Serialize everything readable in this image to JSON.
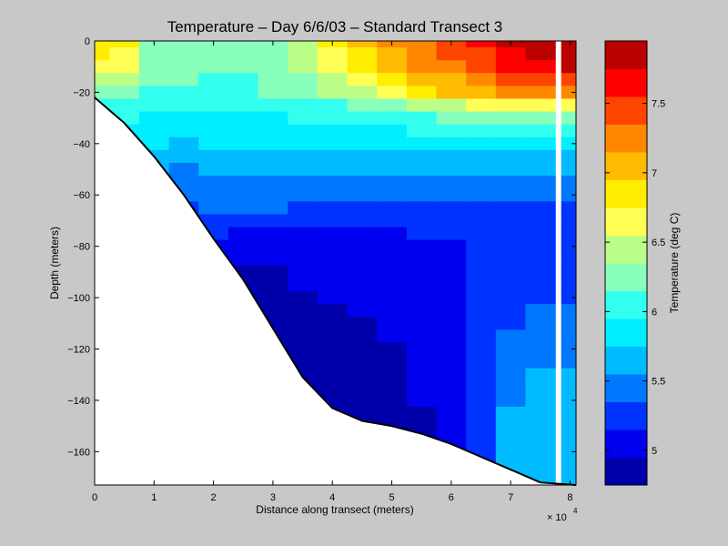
{
  "chart_data": {
    "type": "heatmap",
    "title": "Temperature – Day 6/6/03 – Standard Transect 3",
    "xlabel": "Distance along transect (meters)",
    "ylabel": "Depth (meters)",
    "x_exponent_label": "× 10",
    "x_exponent_power": "4",
    "xlim": [
      0,
      81000
    ],
    "ylim": [
      -173,
      0
    ],
    "x_tick_values": [
      0,
      10000,
      20000,
      30000,
      40000,
      50000,
      60000,
      70000,
      80000
    ],
    "x_tick_labels": [
      "0",
      "1",
      "2",
      "3",
      "4",
      "5",
      "6",
      "7",
      "8"
    ],
    "y_ticks": [
      0,
      -20,
      -40,
      -60,
      -80,
      -100,
      -120,
      -140,
      -160
    ],
    "y_tick_labels": [
      "0",
      "−20",
      "−40",
      "−60",
      "−80",
      "−100",
      "−120",
      "−140",
      "−160"
    ],
    "colorbar": {
      "label": "Temperature (deg C)",
      "range": [
        4.75,
        7.95
      ],
      "ticks": [
        5,
        5.5,
        6,
        6.5,
        7,
        7.5
      ],
      "tick_labels": [
        "5",
        "5.5",
        "6",
        "6.5",
        "7",
        "7.5"
      ],
      "levels": [
        {
          "value": 4.85,
          "color": "#0000aa"
        },
        {
          "value": 5.05,
          "color": "#0000ee"
        },
        {
          "value": 5.25,
          "color": "#0033ff"
        },
        {
          "value": 5.45,
          "color": "#0077ff"
        },
        {
          "value": 5.65,
          "color": "#00bbff"
        },
        {
          "value": 5.85,
          "color": "#00eeff"
        },
        {
          "value": 6.05,
          "color": "#33ffee"
        },
        {
          "value": 6.25,
          "color": "#88ffbb"
        },
        {
          "value": 6.45,
          "color": "#bbff88"
        },
        {
          "value": 6.65,
          "color": "#ffff55"
        },
        {
          "value": 6.85,
          "color": "#ffee00"
        },
        {
          "value": 7.05,
          "color": "#ffbb00"
        },
        {
          "value": 7.25,
          "color": "#ff8800"
        },
        {
          "value": 7.45,
          "color": "#ff4400"
        },
        {
          "value": 7.65,
          "color": "#ff0000"
        },
        {
          "value": 7.85,
          "color": "#bb0000"
        }
      ]
    },
    "bathymetry": [
      [
        0,
        -22
      ],
      [
        5000,
        -32
      ],
      [
        10000,
        -45
      ],
      [
        15000,
        -60
      ],
      [
        20000,
        -77
      ],
      [
        25000,
        -93
      ],
      [
        30000,
        -112
      ],
      [
        35000,
        -131
      ],
      [
        40000,
        -143
      ],
      [
        45000,
        -148
      ],
      [
        50000,
        -150
      ],
      [
        55000,
        -153
      ],
      [
        60000,
        -157
      ],
      [
        65000,
        -162
      ],
      [
        70000,
        -167
      ],
      [
        75000,
        -172
      ],
      [
        81000,
        -173
      ]
    ],
    "temperature_field": {
      "x": [
        0,
        5000,
        10000,
        15000,
        20000,
        25000,
        30000,
        35000,
        40000,
        45000,
        50000,
        55000,
        60000,
        65000,
        70000,
        75000,
        81000
      ],
      "depth": [
        0,
        5,
        10,
        15,
        20,
        25,
        30,
        35,
        40,
        45,
        50,
        55,
        60,
        65,
        70,
        75,
        80,
        85,
        90,
        95,
        100,
        105,
        110,
        115,
        120,
        125,
        130,
        135,
        140,
        145,
        150,
        155,
        160,
        165,
        170,
        175
      ],
      "profiles": [
        [
          [
            0,
            6.85
          ],
          [
            10,
            6.7
          ],
          [
            18,
            6.45
          ],
          [
            22,
            6.2
          ],
          [
            30,
            6.0
          ],
          [
            40,
            5.85
          ],
          [
            50,
            5.7
          ],
          [
            60,
            5.55
          ],
          [
            80,
            5.35
          ],
          [
            100,
            5.15
          ],
          [
            130,
            5.05
          ],
          [
            175,
            5.0
          ]
        ],
        [
          [
            0,
            6.75
          ],
          [
            10,
            6.6
          ],
          [
            18,
            6.4
          ],
          [
            22,
            6.2
          ],
          [
            28,
            6.0
          ],
          [
            38,
            5.85
          ],
          [
            50,
            5.7
          ],
          [
            60,
            5.55
          ],
          [
            80,
            5.35
          ],
          [
            100,
            5.15
          ],
          [
            130,
            5.05
          ],
          [
            175,
            5.0
          ]
        ],
        [
          [
            0,
            6.35
          ],
          [
            12,
            6.3
          ],
          [
            18,
            6.2
          ],
          [
            22,
            6.05
          ],
          [
            30,
            5.9
          ],
          [
            42,
            5.75
          ],
          [
            50,
            5.6
          ],
          [
            60,
            5.45
          ],
          [
            70,
            5.3
          ],
          [
            90,
            5.15
          ],
          [
            130,
            5.05
          ],
          [
            175,
            5.0
          ]
        ],
        [
          [
            0,
            6.25
          ],
          [
            12,
            6.2
          ],
          [
            18,
            6.1
          ],
          [
            22,
            6.0
          ],
          [
            32,
            5.85
          ],
          [
            42,
            5.7
          ],
          [
            52,
            5.5
          ],
          [
            62,
            5.35
          ],
          [
            72,
            5.2
          ],
          [
            90,
            5.1
          ],
          [
            130,
            5.0
          ],
          [
            175,
            4.98
          ]
        ],
        [
          [
            0,
            6.2
          ],
          [
            12,
            6.15
          ],
          [
            18,
            6.05
          ],
          [
            25,
            5.95
          ],
          [
            35,
            5.85
          ],
          [
            45,
            5.65
          ],
          [
            55,
            5.5
          ],
          [
            66,
            5.35
          ],
          [
            75,
            5.15
          ],
          [
            85,
            5.05
          ],
          [
            130,
            5.0
          ],
          [
            175,
            4.98
          ]
        ],
        [
          [
            0,
            6.2
          ],
          [
            12,
            6.15
          ],
          [
            18,
            6.1
          ],
          [
            26,
            5.95
          ],
          [
            35,
            5.85
          ],
          [
            45,
            5.65
          ],
          [
            55,
            5.5
          ],
          [
            66,
            5.35
          ],
          [
            72,
            5.2
          ],
          [
            80,
            5.05
          ],
          [
            90,
            4.9
          ],
          [
            130,
            4.85
          ],
          [
            175,
            4.85
          ]
        ],
        [
          [
            0,
            6.3
          ],
          [
            12,
            6.25
          ],
          [
            20,
            6.15
          ],
          [
            26,
            6.0
          ],
          [
            36,
            5.85
          ],
          [
            45,
            5.65
          ],
          [
            55,
            5.5
          ],
          [
            66,
            5.35
          ],
          [
            70,
            5.2
          ],
          [
            78,
            5.05
          ],
          [
            90,
            4.9
          ],
          [
            130,
            4.85
          ],
          [
            175,
            4.85
          ]
        ],
        [
          [
            0,
            6.5
          ],
          [
            12,
            6.4
          ],
          [
            20,
            6.25
          ],
          [
            26,
            6.05
          ],
          [
            38,
            5.85
          ],
          [
            46,
            5.65
          ],
          [
            55,
            5.5
          ],
          [
            62,
            5.35
          ],
          [
            68,
            5.2
          ],
          [
            78,
            5.05
          ],
          [
            95,
            4.95
          ],
          [
            110,
            4.85
          ],
          [
            175,
            4.85
          ]
        ],
        [
          [
            0,
            6.75
          ],
          [
            12,
            6.6
          ],
          [
            20,
            6.4
          ],
          [
            26,
            6.1
          ],
          [
            38,
            5.85
          ],
          [
            46,
            5.65
          ],
          [
            54,
            5.5
          ],
          [
            62,
            5.35
          ],
          [
            68,
            5.2
          ],
          [
            80,
            5.05
          ],
          [
            100,
            4.95
          ],
          [
            110,
            4.85
          ],
          [
            175,
            4.85
          ]
        ],
        [
          [
            0,
            6.95
          ],
          [
            10,
            6.8
          ],
          [
            20,
            6.55
          ],
          [
            26,
            6.15
          ],
          [
            38,
            5.85
          ],
          [
            46,
            5.65
          ],
          [
            54,
            5.5
          ],
          [
            62,
            5.35
          ],
          [
            68,
            5.2
          ],
          [
            80,
            5.05
          ],
          [
            105,
            4.95
          ],
          [
            115,
            4.85
          ],
          [
            175,
            4.85
          ]
        ],
        [
          [
            0,
            7.15
          ],
          [
            10,
            7.0
          ],
          [
            20,
            6.7
          ],
          [
            27,
            6.2
          ],
          [
            38,
            5.85
          ],
          [
            47,
            5.65
          ],
          [
            55,
            5.5
          ],
          [
            62,
            5.35
          ],
          [
            68,
            5.2
          ],
          [
            85,
            5.05
          ],
          [
            115,
            4.95
          ],
          [
            130,
            4.85
          ],
          [
            175,
            4.85
          ]
        ],
        [
          [
            0,
            7.3
          ],
          [
            10,
            7.15
          ],
          [
            20,
            6.8
          ],
          [
            27,
            6.25
          ],
          [
            38,
            5.85
          ],
          [
            47,
            5.65
          ],
          [
            55,
            5.5
          ],
          [
            62,
            5.35
          ],
          [
            68,
            5.2
          ],
          [
            85,
            5.1
          ],
          [
            120,
            5.05
          ],
          [
            140,
            4.95
          ],
          [
            175,
            4.9
          ]
        ],
        [
          [
            0,
            7.45
          ],
          [
            10,
            7.3
          ],
          [
            20,
            6.95
          ],
          [
            28,
            6.3
          ],
          [
            38,
            5.85
          ],
          [
            47,
            5.65
          ],
          [
            55,
            5.5
          ],
          [
            62,
            5.35
          ],
          [
            68,
            5.2
          ],
          [
            85,
            5.1
          ],
          [
            120,
            5.05
          ],
          [
            175,
            5.0
          ]
        ],
        [
          [
            0,
            7.6
          ],
          [
            10,
            7.45
          ],
          [
            20,
            7.05
          ],
          [
            28,
            6.35
          ],
          [
            38,
            5.85
          ],
          [
            47,
            5.65
          ],
          [
            55,
            5.5
          ],
          [
            62,
            5.35
          ],
          [
            70,
            5.2
          ],
          [
            100,
            5.15
          ],
          [
            140,
            5.3
          ],
          [
            175,
            5.35
          ]
        ],
        [
          [
            0,
            7.75
          ],
          [
            10,
            7.6
          ],
          [
            20,
            7.15
          ],
          [
            28,
            6.35
          ],
          [
            38,
            5.85
          ],
          [
            47,
            5.65
          ],
          [
            55,
            5.5
          ],
          [
            62,
            5.35
          ],
          [
            70,
            5.25
          ],
          [
            100,
            5.25
          ],
          [
            120,
            5.4
          ],
          [
            140,
            5.55
          ],
          [
            175,
            5.6
          ]
        ],
        [
          [
            0,
            7.85
          ],
          [
            10,
            7.7
          ],
          [
            20,
            7.2
          ],
          [
            28,
            6.35
          ],
          [
            38,
            5.85
          ],
          [
            47,
            5.65
          ],
          [
            55,
            5.5
          ],
          [
            62,
            5.35
          ],
          [
            70,
            5.25
          ],
          [
            95,
            5.25
          ],
          [
            110,
            5.4
          ],
          [
            125,
            5.55
          ],
          [
            175,
            5.65
          ]
        ],
        [
          [
            0,
            7.9
          ],
          [
            10,
            7.75
          ],
          [
            20,
            7.25
          ],
          [
            28,
            6.35
          ],
          [
            38,
            5.85
          ],
          [
            47,
            5.65
          ],
          [
            55,
            5.5
          ],
          [
            62,
            5.35
          ],
          [
            70,
            5.25
          ],
          [
            95,
            5.25
          ],
          [
            110,
            5.4
          ],
          [
            125,
            5.55
          ],
          [
            175,
            5.65
          ]
        ]
      ]
    }
  }
}
